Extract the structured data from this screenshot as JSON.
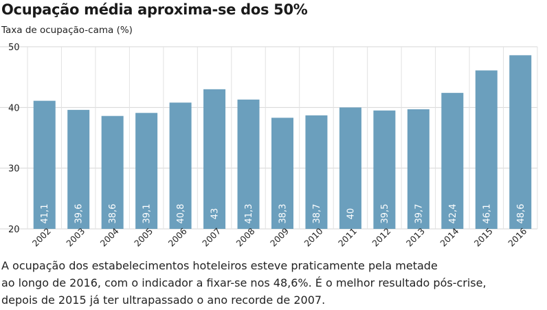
{
  "title": "Ocupação média aproxima-se dos 50%",
  "subtitle": "Taxa de ocupação-cama (%)",
  "chart_data": {
    "type": "bar",
    "categories": [
      "2002",
      "2003",
      "2004",
      "2005",
      "2006",
      "2007",
      "2008",
      "2009",
      "2010",
      "2011",
      "2012",
      "2013",
      "2014",
      "2015",
      "2016"
    ],
    "values": [
      41.1,
      39.6,
      38.6,
      39.1,
      40.8,
      43,
      41.3,
      38.3,
      38.7,
      40,
      39.5,
      39.7,
      42.4,
      46.1,
      48.6
    ],
    "value_labels": [
      "41,1",
      "39,6",
      "38,6",
      "39,1",
      "40,8",
      "43",
      "41,3",
      "38,3",
      "38,7",
      "40",
      "39,5",
      "39,7",
      "42,4",
      "46,1",
      "48,6"
    ],
    "ylim": [
      20,
      50
    ],
    "yticks": [
      20,
      30,
      40,
      50
    ],
    "ytick_labels": [
      "20",
      "30",
      "40",
      "50"
    ],
    "xlabel": "",
    "ylabel": "",
    "bar_color": "#6b9fbd",
    "grid": true
  },
  "caption_lines": [
    "A ocupação dos estabelecimentos hoteleiros esteve praticamente pela metade",
    "ao longo de 2016, com o indicador a fixar-se nos 48,6%. É o melhor resultado pós-crise,",
    "depois de 2015 já ter ultrapassado o ano recorde de 2007."
  ]
}
